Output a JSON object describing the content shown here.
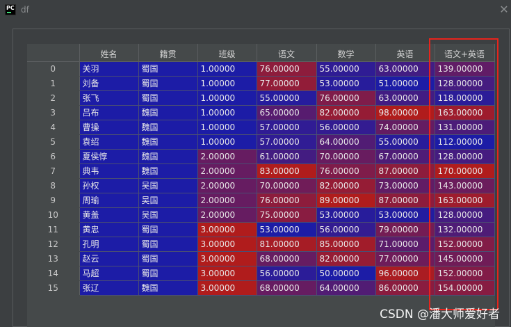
{
  "window": {
    "icon_text": "PC",
    "title": "df",
    "close_icon": "close-icon"
  },
  "table": {
    "columns": [
      "",
      "姓名",
      "籍贯",
      "班级",
      "语文",
      "数学",
      "英语",
      "语文+英语"
    ],
    "rows": [
      {
        "index": "0",
        "cells": [
          "关羽",
          "蜀国",
          "1.00000",
          "76.00000",
          "55.00000",
          "63.00000",
          "139.00000"
        ]
      },
      {
        "index": "1",
        "cells": [
          "刘备",
          "蜀国",
          "1.00000",
          "77.00000",
          "53.00000",
          "51.00000",
          "128.00000"
        ]
      },
      {
        "index": "2",
        "cells": [
          "张飞",
          "蜀国",
          "1.00000",
          "55.00000",
          "76.00000",
          "63.00000",
          "118.00000"
        ]
      },
      {
        "index": "3",
        "cells": [
          "吕布",
          "魏国",
          "1.00000",
          "65.00000",
          "82.00000",
          "98.00000",
          "163.00000"
        ]
      },
      {
        "index": "4",
        "cells": [
          "曹操",
          "魏国",
          "1.00000",
          "57.00000",
          "56.00000",
          "74.00000",
          "131.00000"
        ]
      },
      {
        "index": "5",
        "cells": [
          "袁绍",
          "魏国",
          "1.00000",
          "57.00000",
          "64.00000",
          "55.00000",
          "112.00000"
        ]
      },
      {
        "index": "6",
        "cells": [
          "夏侯惇",
          "魏国",
          "2.00000",
          "61.00000",
          "70.00000",
          "67.00000",
          "128.00000"
        ]
      },
      {
        "index": "7",
        "cells": [
          "典韦",
          "魏国",
          "2.00000",
          "83.00000",
          "76.00000",
          "87.00000",
          "170.00000"
        ]
      },
      {
        "index": "8",
        "cells": [
          "孙权",
          "吴国",
          "2.00000",
          "70.00000",
          "82.00000",
          "73.00000",
          "143.00000"
        ]
      },
      {
        "index": "9",
        "cells": [
          "周瑜",
          "吴国",
          "2.00000",
          "76.00000",
          "89.00000",
          "87.00000",
          "163.00000"
        ]
      },
      {
        "index": "10",
        "cells": [
          "黄盖",
          "吴国",
          "2.00000",
          "75.00000",
          "53.00000",
          "53.00000",
          "128.00000"
        ]
      },
      {
        "index": "11",
        "cells": [
          "黄忠",
          "蜀国",
          "3.00000",
          "53.00000",
          "56.00000",
          "79.00000",
          "132.00000"
        ]
      },
      {
        "index": "12",
        "cells": [
          "孔明",
          "蜀国",
          "3.00000",
          "81.00000",
          "85.00000",
          "71.00000",
          "152.00000"
        ]
      },
      {
        "index": "13",
        "cells": [
          "赵云",
          "蜀国",
          "3.00000",
          "68.00000",
          "82.00000",
          "77.00000",
          "145.00000"
        ]
      },
      {
        "index": "14",
        "cells": [
          "马超",
          "蜀国",
          "3.00000",
          "56.00000",
          "50.00000",
          "96.00000",
          "152.00000"
        ]
      },
      {
        "index": "15",
        "cells": [
          "张辽",
          "魏国",
          "3.00000",
          "68.00000",
          "64.00000",
          "86.00000",
          "154.00000"
        ]
      }
    ]
  },
  "colors": {
    "low": "#1c1ca6",
    "high": "#b01c1c",
    "highlight_box": "#e8241c",
    "background": "#3c3f41"
  },
  "watermark": "CSDN @潘大师爱好者"
}
